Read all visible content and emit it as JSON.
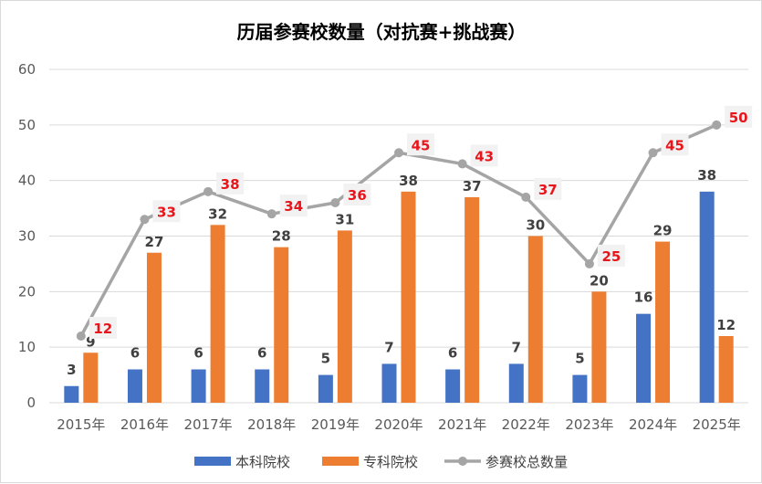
{
  "chart_data": {
    "type": "bar",
    "title": "历届参赛校数量（对抗赛+挑战赛）",
    "categories": [
      "2015年",
      "2016年",
      "2017年",
      "2018年",
      "2019年",
      "2020年",
      "2021年",
      "2022年",
      "2023年",
      "2024年",
      "2025年"
    ],
    "series": [
      {
        "name": "本科院校",
        "type": "bar",
        "color": "#4472c4",
        "values": [
          3,
          6,
          6,
          6,
          5,
          7,
          6,
          7,
          5,
          16,
          38
        ]
      },
      {
        "name": "专科院校",
        "type": "bar",
        "color": "#ed7d31",
        "values": [
          9,
          27,
          32,
          28,
          31,
          38,
          37,
          30,
          20,
          29,
          12
        ]
      },
      {
        "name": "参赛校总数量",
        "type": "line",
        "color": "#a5a5a5",
        "label_color": "#e8161c",
        "values": [
          12,
          33,
          38,
          34,
          36,
          45,
          43,
          37,
          25,
          45,
          50
        ]
      }
    ],
    "y_ticks": [
      "0",
      "10",
      "20",
      "30",
      "40",
      "50",
      "60"
    ],
    "ylim": [
      0,
      60
    ],
    "grid": true,
    "legend_position": "bottom"
  }
}
